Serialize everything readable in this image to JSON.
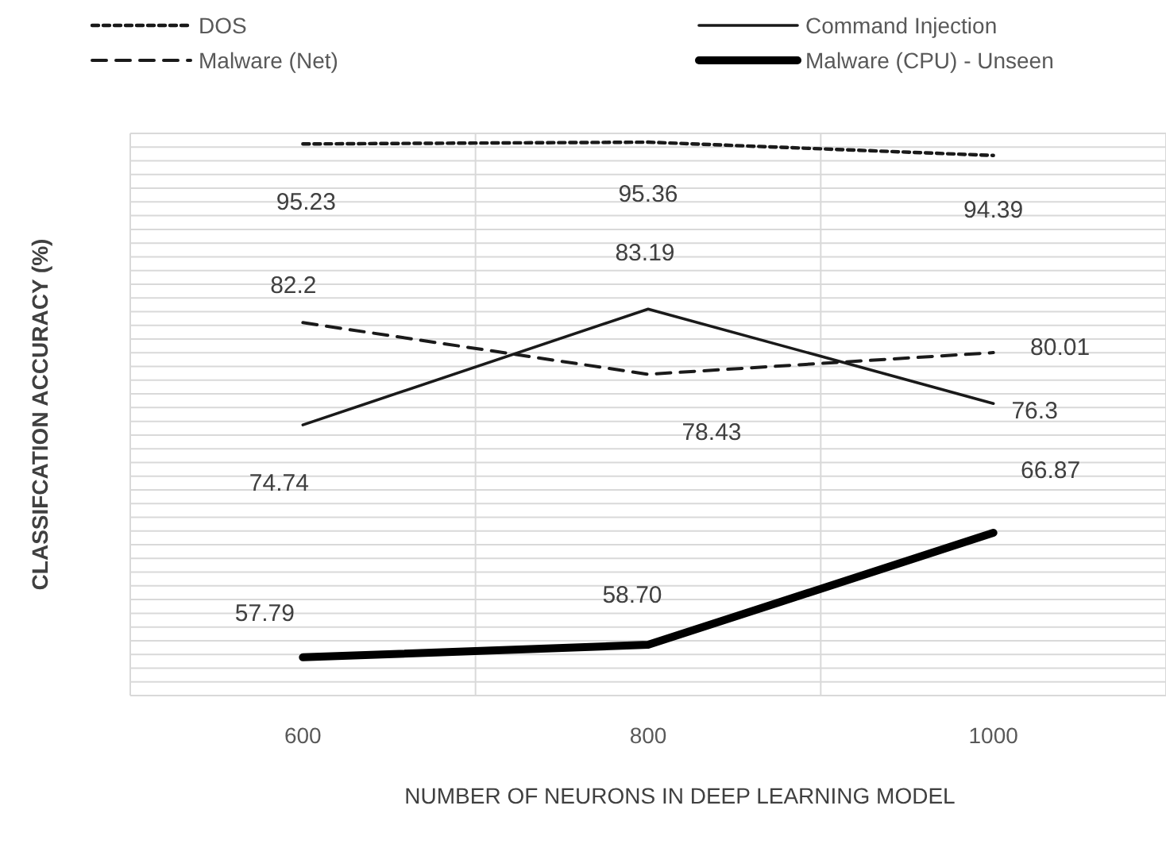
{
  "chart_data": {
    "type": "line",
    "xlabel": "NUMBER OF NEURONS IN DEEP LEARNING MODEL",
    "ylabel": "CLASSIFCATION ACCURACY (%)",
    "categories": [
      "600",
      "800",
      "1000"
    ],
    "ylim": [
      55,
      96
    ],
    "yticks": [
      {
        "value": 55,
        "label": null
      },
      {
        "value": 56,
        "label": null
      },
      {
        "value": 57,
        "label": null
      },
      {
        "value": 58,
        "label": null
      },
      {
        "value": 59,
        "label": null
      },
      {
        "value": 60,
        "label": null
      },
      {
        "value": 61,
        "label": null
      },
      {
        "value": 62,
        "label": null
      },
      {
        "value": 63,
        "label": null
      },
      {
        "value": 64,
        "label": null
      },
      {
        "value": 65,
        "label": null
      },
      {
        "value": 66,
        "label": null
      },
      {
        "value": 67,
        "label": null
      },
      {
        "value": 68,
        "label": null
      },
      {
        "value": 69,
        "label": null
      },
      {
        "value": 70,
        "label": null
      },
      {
        "value": 71,
        "label": null
      },
      {
        "value": 72,
        "label": null
      },
      {
        "value": 73,
        "label": null
      },
      {
        "value": 74,
        "label": null
      },
      {
        "value": 75,
        "label": null
      },
      {
        "value": 76,
        "label": null
      },
      {
        "value": 77,
        "label": null
      },
      {
        "value": 78,
        "label": null
      },
      {
        "value": 79,
        "label": null
      },
      {
        "value": 80,
        "label": null
      },
      {
        "value": 81,
        "label": null
      },
      {
        "value": 82,
        "label": null
      },
      {
        "value": 83,
        "label": null
      },
      {
        "value": 84,
        "label": null
      },
      {
        "value": 85,
        "label": null
      },
      {
        "value": 86,
        "label": null
      },
      {
        "value": 87,
        "label": null
      },
      {
        "value": 88,
        "label": null
      },
      {
        "value": 89,
        "label": null
      },
      {
        "value": 90,
        "label": null
      },
      {
        "value": 91,
        "label": null
      },
      {
        "value": 92,
        "label": null
      },
      {
        "value": 93,
        "label": null
      },
      {
        "value": 94,
        "label": null
      },
      {
        "value": 95,
        "label": null
      },
      {
        "value": 96,
        "label": null
      }
    ],
    "tick_labels": "x",
    "grid": true,
    "legend": "top",
    "series": [
      {
        "name": "DOS",
        "color": "#1a1a1a",
        "line_style": "dotted",
        "values": [
          95.23,
          95.36,
          94.39
        ],
        "value_labels": [
          "95.23",
          "95.36",
          "94.39"
        ]
      },
      {
        "name": "Malware (Net)",
        "color": "#1a1a1a",
        "line_style": "dashed",
        "values": [
          82.2,
          78.43,
          80.01
        ],
        "value_labels": [
          "82.2",
          "78.43",
          "80.01"
        ]
      },
      {
        "name": "Command Injection",
        "color": "#1a1a1a",
        "line_style": "solid",
        "values": [
          74.74,
          83.19,
          76.3
        ],
        "value_labels": [
          "74.74",
          "83.19",
          "76.3"
        ]
      },
      {
        "name": "Malware (CPU) - Unseen",
        "color": "#000000",
        "line_style": "solid",
        "values": [
          57.79,
          58.7,
          66.87
        ],
        "value_labels": [
          "57.79",
          "58.70",
          "66.87"
        ]
      }
    ]
  }
}
